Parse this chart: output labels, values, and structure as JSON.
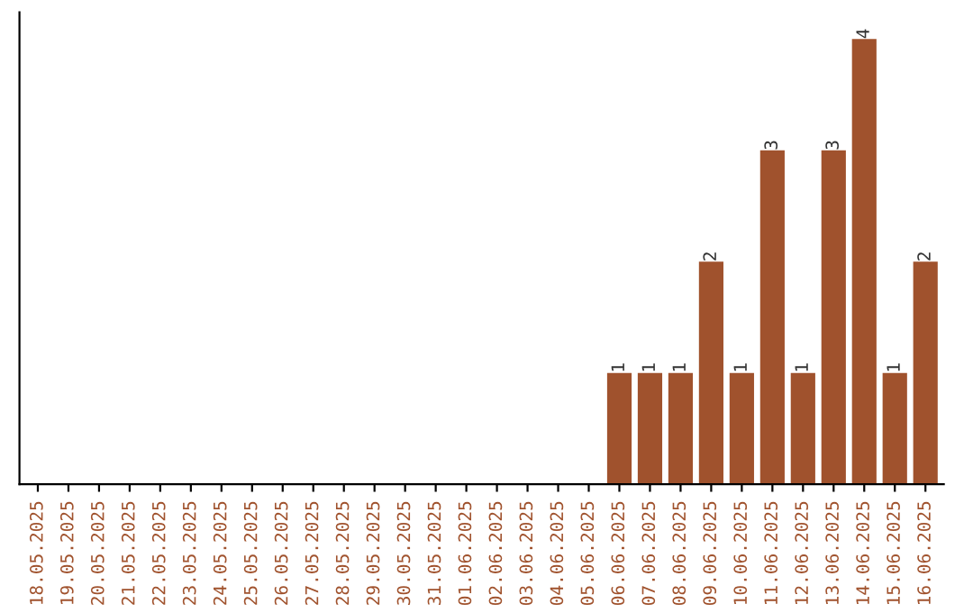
{
  "chart_data": {
    "type": "bar",
    "categories": [
      "18.05.2025",
      "19.05.2025",
      "20.05.2025",
      "21.05.2025",
      "22.05.2025",
      "23.05.2025",
      "24.05.2025",
      "25.05.2025",
      "26.05.2025",
      "27.05.2025",
      "28.05.2025",
      "29.05.2025",
      "30.05.2025",
      "31.05.2025",
      "01.06.2025",
      "02.06.2025",
      "03.06.2025",
      "04.06.2025",
      "05.06.2025",
      "06.06.2025",
      "07.06.2025",
      "08.06.2025",
      "09.06.2025",
      "10.06.2025",
      "11.06.2025",
      "12.06.2025",
      "13.06.2025",
      "14.06.2025",
      "15.06.2025",
      "16.06.2025"
    ],
    "values": [
      null,
      null,
      null,
      null,
      null,
      null,
      null,
      null,
      null,
      null,
      null,
      null,
      null,
      null,
      null,
      null,
      null,
      null,
      null,
      1,
      1,
      1,
      2,
      1,
      3,
      1,
      3,
      4,
      1,
      2
    ],
    "value_labels": [
      null,
      null,
      null,
      null,
      null,
      null,
      null,
      null,
      null,
      null,
      null,
      null,
      null,
      null,
      null,
      null,
      null,
      null,
      null,
      "1",
      "1",
      "1",
      "2",
      "1",
      "3",
      "1",
      "3",
      "4",
      "1",
      "2"
    ],
    "color": "#a0522d",
    "grid": false,
    "tick_labels": "x"
  }
}
